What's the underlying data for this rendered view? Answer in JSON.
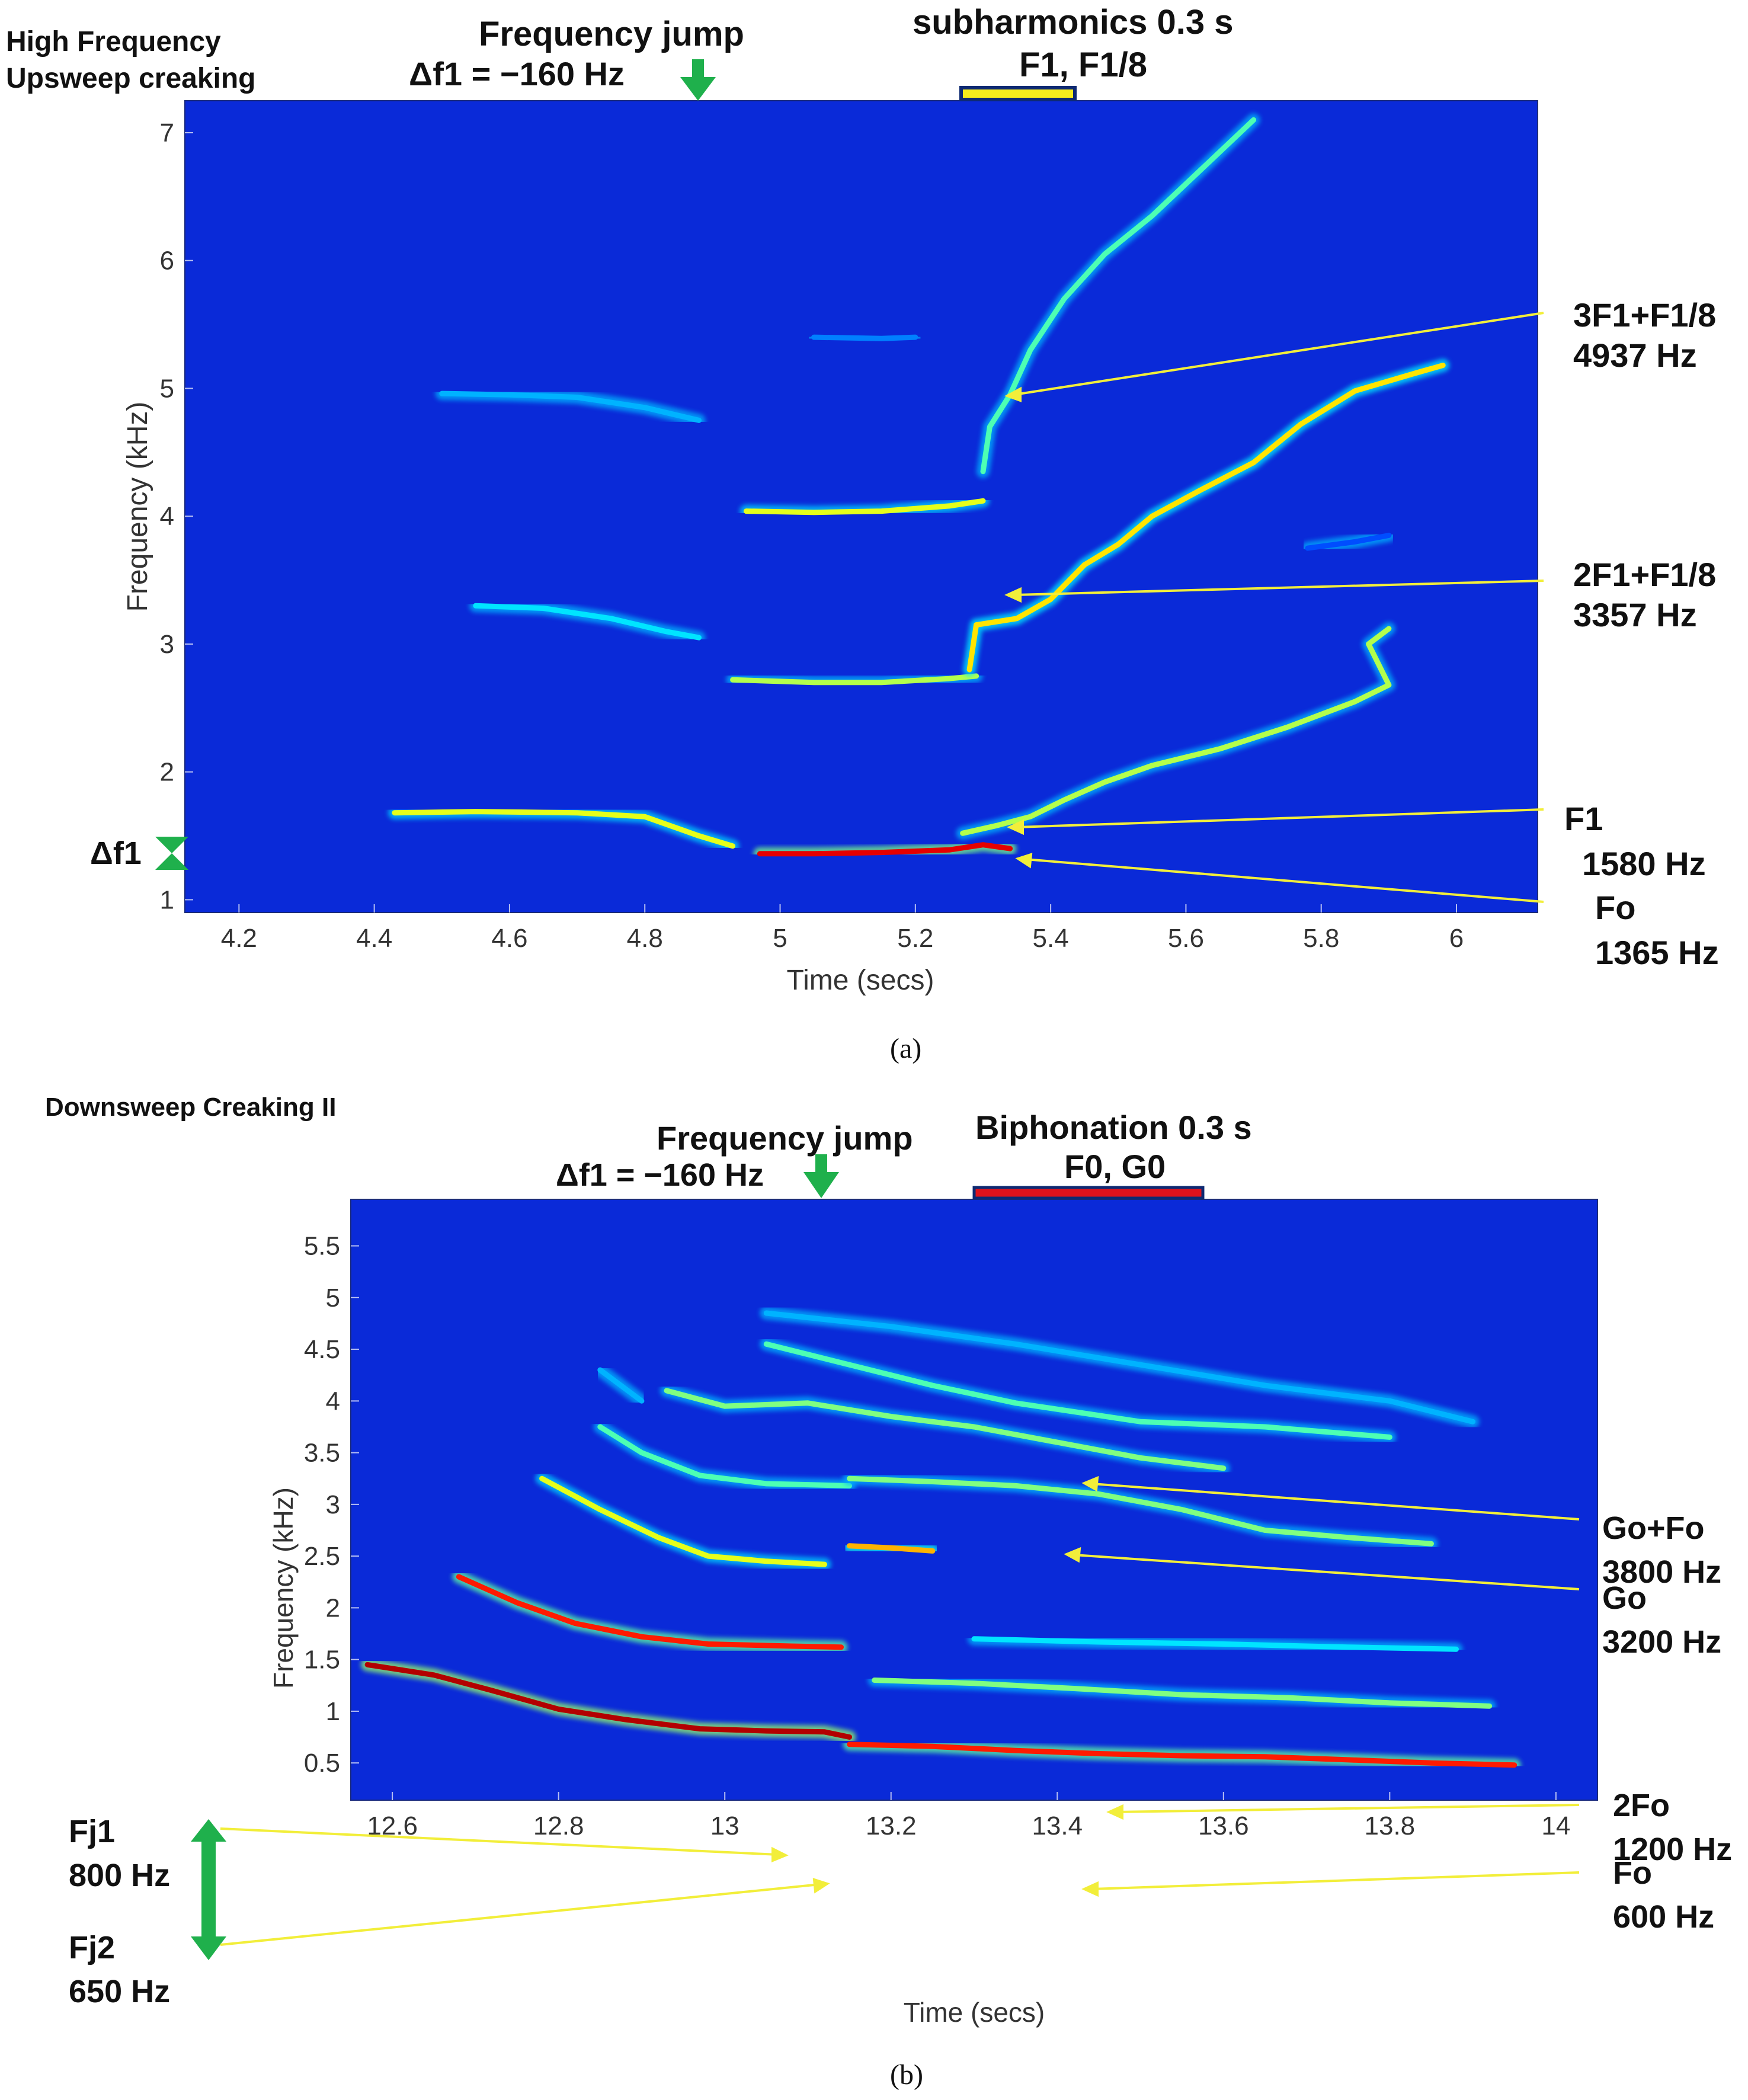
{
  "panel_a": {
    "corner_title": [
      "High Frequency",
      "Upsweep creaking"
    ],
    "freq_jump": [
      "Frequency jump",
      "Δf1 = −160 Hz"
    ],
    "subharm": [
      "subharmonics 0.3 s",
      "F1, F1/8"
    ],
    "delta_marker": "Δf1",
    "annotations": [
      {
        "line1": "3F1+F1/8",
        "line2": "4937 Hz"
      },
      {
        "line1": "2F1+F1/8",
        "line2": "3357 Hz"
      },
      {
        "line1": "F1",
        "line2": "1580 Hz"
      },
      {
        "line1": "Fo",
        "line2": "1365 Hz"
      }
    ],
    "caption": "(a)"
  },
  "panel_b": {
    "corner_title": "Downsweep Creaking II",
    "freq_jump": [
      "Frequency jump",
      "Δf1 = −160 Hz"
    ],
    "biphon": [
      "Biphonation 0.3 s",
      "F0, G0"
    ],
    "annotations": [
      {
        "line1": "Go+Fo",
        "line2": "3800 Hz"
      },
      {
        "line1": "Go",
        "line2": "3200 Hz"
      },
      {
        "line1": "2Fo",
        "line2": "1200 Hz"
      },
      {
        "line1": "Fo",
        "line2": "600 Hz"
      }
    ],
    "fj": [
      {
        "line1": "Fj1",
        "line2": "800 Hz"
      },
      {
        "line1": "Fj2",
        "line2": "650 Hz"
      }
    ],
    "caption": "(b)"
  },
  "colors": {
    "background": "#0a2ad8",
    "annotation_line": "#f2ee3a",
    "marker_green": "#1fb04c",
    "subharmonic_bar": "#f6ec1c",
    "biphonation_bar": "#e0121b"
  },
  "chart_data": [
    {
      "type": "spectrogram",
      "xlabel": "Time (secs)",
      "ylabel": "Frequency (kHz)",
      "xlim": [
        4.12,
        6.12
      ],
      "ylim": [
        0.9,
        7.25
      ],
      "xticks": [
        "4.2",
        "4.4",
        "4.6",
        "4.8",
        "5",
        "5.2",
        "5.4",
        "5.6",
        "5.8",
        "6"
      ],
      "yticks": [
        "1",
        "2",
        "3",
        "4",
        "5",
        "6",
        "7"
      ],
      "colormap": "jet",
      "series": [
        {
          "points": [
            [
              4.43,
              1.68
            ],
            [
              4.55,
              1.69
            ],
            [
              4.7,
              1.68
            ],
            [
              4.8,
              1.65
            ],
            [
              4.88,
              1.5
            ],
            [
              4.93,
              1.42
            ]
          ],
          "intensity": 0.6
        },
        {
          "points": [
            [
              4.97,
              1.36
            ],
            [
              5.05,
              1.36
            ],
            [
              5.15,
              1.37
            ],
            [
              5.25,
              1.39
            ],
            [
              5.3,
              1.43
            ],
            [
              5.34,
              1.4
            ]
          ],
          "intensity": 0.9
        },
        {
          "points": [
            [
              5.27,
              1.52
            ],
            [
              5.32,
              1.58
            ],
            [
              5.37,
              1.65
            ],
            [
              5.42,
              1.78
            ],
            [
              5.48,
              1.92
            ],
            [
              5.55,
              2.05
            ],
            [
              5.65,
              2.18
            ],
            [
              5.75,
              2.35
            ],
            [
              5.85,
              2.55
            ],
            [
              5.9,
              2.68
            ],
            [
              5.87,
              3.0
            ],
            [
              5.9,
              3.12
            ]
          ],
          "intensity": 0.55
        },
        {
          "points": [
            [
              4.55,
              3.3
            ],
            [
              4.65,
              3.28
            ],
            [
              4.75,
              3.2
            ],
            [
              4.83,
              3.1
            ],
            [
              4.88,
              3.05
            ]
          ],
          "intensity": 0.35
        },
        {
          "points": [
            [
              4.93,
              2.72
            ],
            [
              5.05,
              2.7
            ],
            [
              5.15,
              2.7
            ],
            [
              5.25,
              2.73
            ],
            [
              5.29,
              2.75
            ]
          ],
          "intensity": 0.55
        },
        {
          "points": [
            [
              5.28,
              2.8
            ],
            [
              5.29,
              3.15
            ],
            [
              5.35,
              3.2
            ],
            [
              5.4,
              3.35
            ],
            [
              5.45,
              3.62
            ],
            [
              5.5,
              3.78
            ],
            [
              5.55,
              4.0
            ],
            [
              5.62,
              4.2
            ],
            [
              5.7,
              4.42
            ],
            [
              5.77,
              4.72
            ],
            [
              5.85,
              4.98
            ],
            [
              5.94,
              5.12
            ],
            [
              5.98,
              5.18
            ]
          ],
          "intensity": 0.65
        },
        {
          "points": [
            [
              4.5,
              4.96
            ],
            [
              4.6,
              4.95
            ],
            [
              4.7,
              4.93
            ],
            [
              4.8,
              4.85
            ],
            [
              4.88,
              4.75
            ]
          ],
          "intensity": 0.3
        },
        {
          "points": [
            [
              4.95,
              4.04
            ],
            [
              5.05,
              4.03
            ],
            [
              5.15,
              4.04
            ],
            [
              5.25,
              4.08
            ],
            [
              5.3,
              4.12
            ]
          ],
          "intensity": 0.6
        },
        {
          "points": [
            [
              5.3,
              4.35
            ],
            [
              5.31,
              4.7
            ],
            [
              5.34,
              4.95
            ],
            [
              5.37,
              5.3
            ],
            [
              5.42,
              5.7
            ],
            [
              5.48,
              6.05
            ],
            [
              5.55,
              6.35
            ],
            [
              5.62,
              6.7
            ],
            [
              5.7,
              7.1
            ]
          ],
          "intensity": 0.45
        },
        {
          "points": [
            [
              5.05,
              5.4
            ],
            [
              5.15,
              5.39
            ],
            [
              5.2,
              5.4
            ]
          ],
          "intensity": 0.25
        },
        {
          "points": [
            [
              5.78,
              3.75
            ],
            [
              5.85,
              3.8
            ],
            [
              5.9,
              3.85
            ]
          ],
          "intensity": 0.2
        }
      ]
    },
    {
      "type": "spectrogram",
      "xlabel": "Time (secs)",
      "ylabel": "Frequency (kHz)",
      "xlim": [
        12.55,
        14.05
      ],
      "ylim": [
        0.14,
        5.95
      ],
      "xticks": [
        "12.6",
        "12.8",
        "13",
        "13.2",
        "13.4",
        "13.6",
        "13.8",
        "14"
      ],
      "yticks": [
        "0.5",
        "1",
        "1.5",
        "2",
        "2.5",
        "3",
        "3.5",
        "4",
        "4.5",
        "5",
        "5.5"
      ],
      "colormap": "jet",
      "series": [
        {
          "points": [
            [
              12.57,
              1.45
            ],
            [
              12.65,
              1.35
            ],
            [
              12.72,
              1.2
            ],
            [
              12.8,
              1.02
            ],
            [
              12.88,
              0.92
            ],
            [
              12.97,
              0.83
            ],
            [
              13.05,
              0.81
            ],
            [
              13.12,
              0.8
            ],
            [
              13.15,
              0.75
            ]
          ],
          "intensity": 0.95
        },
        {
          "points": [
            [
              13.15,
              0.68
            ],
            [
              13.25,
              0.66
            ],
            [
              13.35,
              0.62
            ],
            [
              13.45,
              0.59
            ],
            [
              13.55,
              0.57
            ],
            [
              13.65,
              0.56
            ],
            [
              13.75,
              0.53
            ],
            [
              13.85,
              0.5
            ],
            [
              13.95,
              0.48
            ]
          ],
          "intensity": 0.85
        },
        {
          "points": [
            [
              12.68,
              2.3
            ],
            [
              12.75,
              2.05
            ],
            [
              12.82,
              1.85
            ],
            [
              12.9,
              1.72
            ],
            [
              12.98,
              1.65
            ],
            [
              13.08,
              1.63
            ],
            [
              13.14,
              1.62
            ]
          ],
          "intensity": 0.85
        },
        {
          "points": [
            [
              13.18,
              1.3
            ],
            [
              13.3,
              1.27
            ],
            [
              13.42,
              1.22
            ],
            [
              13.55,
              1.16
            ],
            [
              13.68,
              1.13
            ],
            [
              13.8,
              1.08
            ],
            [
              13.92,
              1.05
            ]
          ],
          "intensity": 0.5
        },
        {
          "points": [
            [
              12.78,
              3.25
            ],
            [
              12.85,
              2.95
            ],
            [
              12.92,
              2.68
            ],
            [
              12.98,
              2.5
            ],
            [
              13.05,
              2.45
            ],
            [
              13.12,
              2.42
            ]
          ],
          "intensity": 0.6
        },
        {
          "points": [
            [
              13.15,
              2.6
            ],
            [
              13.2,
              2.58
            ],
            [
              13.25,
              2.55
            ]
          ],
          "intensity": 0.7
        },
        {
          "points": [
            [
              13.3,
              1.7
            ],
            [
              13.45,
              1.67
            ],
            [
              13.6,
              1.65
            ],
            [
              13.75,
              1.62
            ],
            [
              13.88,
              1.6
            ]
          ],
          "intensity": 0.35
        },
        {
          "points": [
            [
              12.85,
              3.75
            ],
            [
              12.9,
              3.5
            ],
            [
              12.97,
              3.28
            ],
            [
              13.05,
              3.2
            ],
            [
              13.15,
              3.18
            ]
          ],
          "intensity": 0.45
        },
        {
          "points": [
            [
              13.15,
              3.25
            ],
            [
              13.25,
              3.22
            ],
            [
              13.35,
              3.18
            ],
            [
              13.45,
              3.1
            ],
            [
              13.55,
              2.95
            ],
            [
              13.65,
              2.75
            ],
            [
              13.75,
              2.68
            ],
            [
              13.85,
              2.62
            ]
          ],
          "intensity": 0.5
        },
        {
          "points": [
            [
              12.93,
              4.1
            ],
            [
              13.0,
              3.95
            ],
            [
              13.1,
              3.98
            ],
            [
              13.2,
              3.85
            ],
            [
              13.3,
              3.75
            ],
            [
              13.4,
              3.6
            ],
            [
              13.5,
              3.45
            ],
            [
              13.6,
              3.35
            ]
          ],
          "intensity": 0.5
        },
        {
          "points": [
            [
              13.05,
              4.55
            ],
            [
              13.15,
              4.35
            ],
            [
              13.25,
              4.15
            ],
            [
              13.35,
              3.98
            ],
            [
              13.5,
              3.8
            ],
            [
              13.65,
              3.75
            ],
            [
              13.8,
              3.65
            ]
          ],
          "intensity": 0.45
        },
        {
          "points": [
            [
              13.05,
              4.85
            ],
            [
              13.2,
              4.72
            ],
            [
              13.35,
              4.55
            ],
            [
              13.5,
              4.35
            ],
            [
              13.65,
              4.15
            ],
            [
              13.8,
              4.0
            ],
            [
              13.9,
              3.8
            ]
          ],
          "intensity": 0.3
        },
        {
          "points": [
            [
              12.85,
              4.3
            ],
            [
              12.9,
              4.0
            ]
          ],
          "intensity": 0.3
        }
      ]
    }
  ]
}
